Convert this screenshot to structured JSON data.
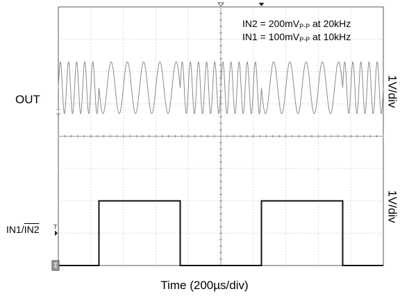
{
  "chart_data": {
    "type": "line",
    "title": "",
    "xlabel": "Time (200µs/div)",
    "ylabel": "",
    "grid": true,
    "x_divisions": 10,
    "y_divisions": 8,
    "time_per_div_us": 200,
    "annotations": [
      {
        "prefix": "IN2 = 200mV",
        "sub": "P-P",
        "suffix": " at 20kHz"
      },
      {
        "prefix": "IN1 = 100mV",
        "sub": "P-P",
        "suffix": " at 10kHz"
      }
    ],
    "channels": [
      {
        "name": "OUT",
        "scale": "1V/div",
        "waveform": "sine",
        "segments": [
          {
            "t_start_us": 0,
            "t_end_us": 250,
            "frequency_khz": 20
          },
          {
            "t_start_us": 250,
            "t_end_us": 750,
            "frequency_khz": 10
          },
          {
            "t_start_us": 750,
            "t_end_us": 1250,
            "frequency_khz": 20
          },
          {
            "t_start_us": 1250,
            "t_end_us": 1750,
            "frequency_khz": 10
          },
          {
            "t_start_us": 1750,
            "t_end_us": 2000,
            "frequency_khz": 20
          }
        ],
        "amplitude_div": 0.8,
        "center_div": 5.5
      },
      {
        "name": "IN1/IN2",
        "label_plain": "IN1/",
        "label_overline": "IN2",
        "scale": "1V/div",
        "waveform": "square",
        "high_div": 2.0,
        "low_div": 0.0,
        "center_div": 1.0,
        "steps": [
          {
            "t_us": 0,
            "level": "low"
          },
          {
            "t_us": 250,
            "level": "high"
          },
          {
            "t_us": 750,
            "level": "low"
          },
          {
            "t_us": 1250,
            "level": "high"
          },
          {
            "t_us": 1750,
            "level": "low"
          }
        ]
      }
    ]
  }
}
